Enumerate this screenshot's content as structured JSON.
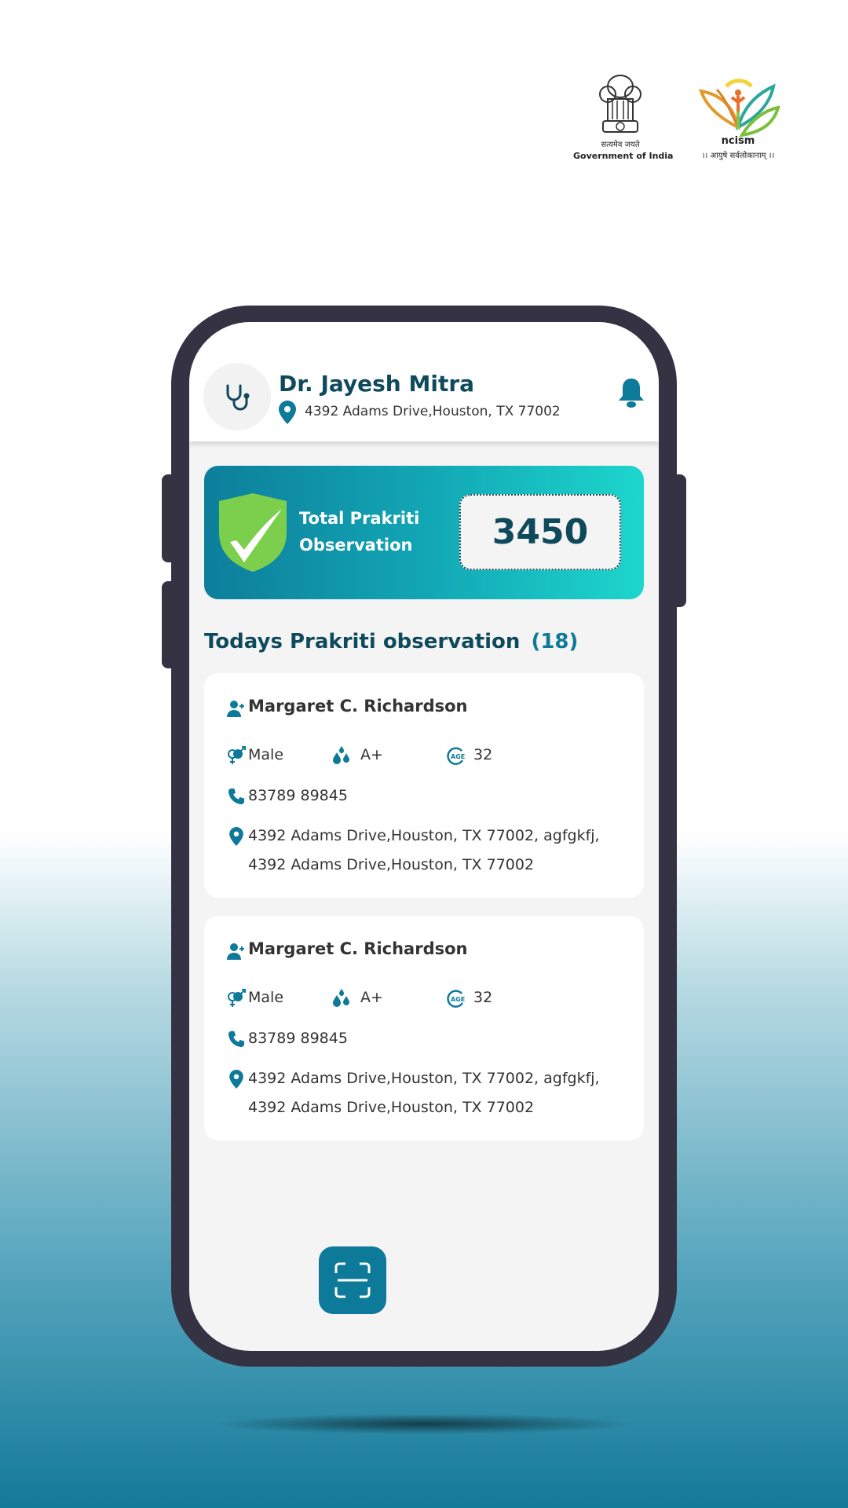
{
  "logos": {
    "govt": {
      "motto": "सत्यमेव जयते",
      "label": "Government of India"
    },
    "ncism": {
      "label": "ncism",
      "tagline": "।। आयुषे सर्वलोकानाम् ।।"
    }
  },
  "header": {
    "doctor_name": "Dr. Jayesh Mitra",
    "address": "4392 Adams Drive,Houston, TX 77002",
    "icons": {
      "avatar": "stethoscope-icon",
      "location": "map-pin-icon",
      "notification": "bell-icon"
    }
  },
  "summary": {
    "label_line1": "Total Prakriti",
    "label_line2": "Observation",
    "count": "3450"
  },
  "section": {
    "title": "Todays Prakriti observation",
    "count": "(18)"
  },
  "patients": [
    {
      "name": "Margaret C. Richardson",
      "gender": "Male",
      "blood_group": "A+",
      "age": "32",
      "phone": "83789 89845",
      "address_line1": "4392 Adams Drive,Houston, TX 77002, agfgkfj,",
      "address_line2": "4392 Adams Drive,Houston, TX 77002"
    },
    {
      "name": "Margaret C. Richardson",
      "gender": "Male",
      "blood_group": "A+",
      "age": "32",
      "phone": "83789 89845",
      "address_line1": "4392 Adams Drive,Houston, TX 77002, agfgkfj,",
      "address_line2": "4392 Adams Drive,Houston, TX 77002"
    }
  ],
  "colors": {
    "primary": "#0e7a99",
    "dark_text": "#0f4a5c",
    "banner_start": "#0d7e9b",
    "banner_end": "#1dd6cc",
    "shield": "#7ccf4d"
  }
}
